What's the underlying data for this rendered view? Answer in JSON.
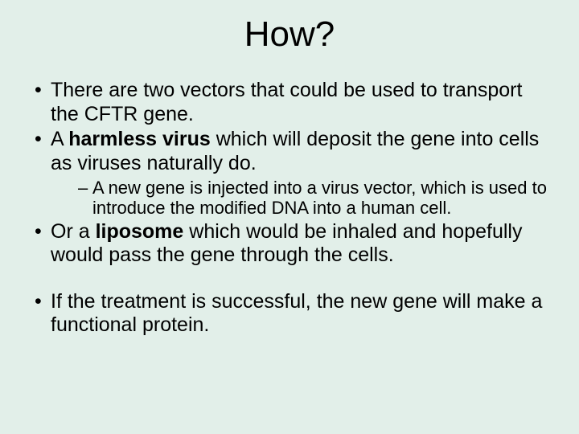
{
  "background_color": "#e2efe9",
  "text_color": "#000000",
  "title": {
    "text": "How?",
    "fontsize": 44,
    "align": "center"
  },
  "bullets": [
    {
      "level": 1,
      "runs": [
        {
          "text": "There are two vectors that could be used to transport the CFTR gene.",
          "bold": false
        }
      ]
    },
    {
      "level": 1,
      "runs": [
        {
          "text": "A ",
          "bold": false
        },
        {
          "text": "harmless virus",
          "bold": true
        },
        {
          "text": " which will deposit the gene into cells as viruses naturally do.",
          "bold": false
        }
      ]
    },
    {
      "level": 2,
      "runs": [
        {
          "text": "A new gene is injected into a virus vector, which is used to introduce the modified DNA into a human cell.",
          "bold": false
        }
      ]
    },
    {
      "level": 1,
      "runs": [
        {
          "text": "Or a ",
          "bold": false
        },
        {
          "text": "liposome",
          "bold": true
        },
        {
          "text": "  which would be inhaled and hopefully would pass the gene through the cells.",
          "bold": false
        }
      ]
    },
    {
      "level": 1,
      "spacer_before": true,
      "runs": [
        {
          "text": "If the treatment is successful, the new gene will make a functional protein.",
          "bold": false
        }
      ]
    }
  ],
  "typography": {
    "body_fontsize": 25,
    "sub_fontsize": 22,
    "font_family": "Arial"
  }
}
